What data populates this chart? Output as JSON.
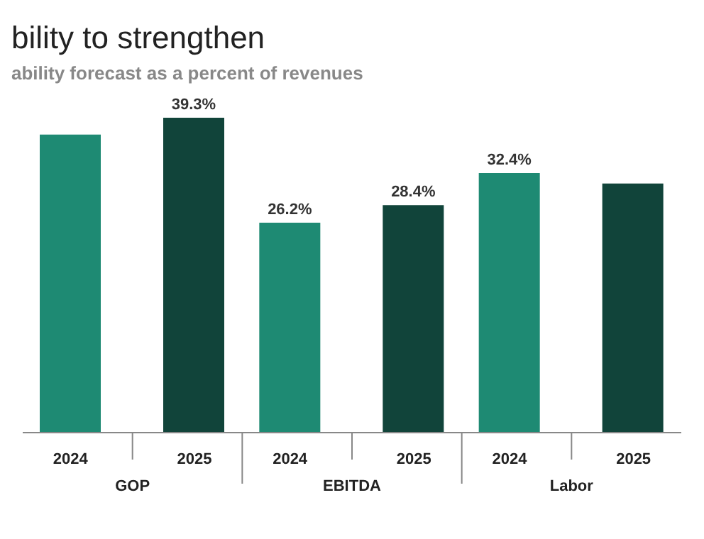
{
  "chart_data": {
    "type": "bar",
    "title": "bility to strengthen",
    "subtitle": "ability forecast as a percent of revenues",
    "categories": [
      "GOP",
      "EBITDA",
      "Labor"
    ],
    "series": [
      {
        "name": "2024",
        "color": "#1e8a73",
        "values": [
          37.2,
          26.2,
          32.4
        ],
        "value_labels": [
          null,
          "26.2%",
          "32.4%"
        ]
      },
      {
        "name": "2025",
        "color": "#11443a",
        "values": [
          39.3,
          28.4,
          31.1
        ],
        "value_labels": [
          "39.3%",
          "28.4%",
          null
        ]
      }
    ],
    "grid": false,
    "legend": false
  }
}
